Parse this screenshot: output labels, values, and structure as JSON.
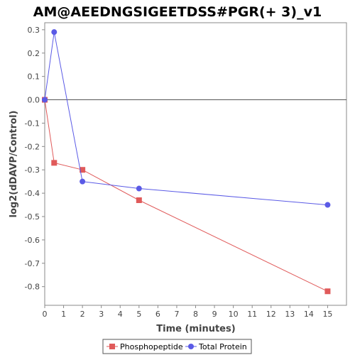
{
  "chart_data": {
    "type": "line",
    "title": "AM@AEEDNGSIGEETDSS#PGR(+ 3)_v1",
    "xlabel": "Time (minutes)",
    "ylabel": "log2(dDAVP/Control)",
    "xlim": [
      0,
      16
    ],
    "ylim": [
      -0.88,
      0.33
    ],
    "x_ticks": [
      "0",
      "1",
      "2",
      "3",
      "4",
      "5",
      "6",
      "7",
      "8",
      "9",
      "10",
      "11",
      "12",
      "13",
      "14",
      "15"
    ],
    "y_ticks": [
      "0.3",
      "0.2",
      "0.1",
      "0.0",
      "-0.1",
      "-0.2",
      "-0.3",
      "-0.4",
      "-0.5",
      "-0.6",
      "-0.7",
      "-0.8"
    ],
    "grid": false,
    "zero_line": true,
    "legend_position": "bottom",
    "series": [
      {
        "name": "Phosphopeptide",
        "color": "#e05a5a",
        "marker": "square",
        "x": [
          0,
          0.5,
          2,
          5,
          15
        ],
        "y": [
          0.0,
          -0.27,
          -0.3,
          -0.43,
          -0.82
        ]
      },
      {
        "name": "Total Protein",
        "color": "#5a5ae6",
        "marker": "circle",
        "x": [
          0,
          0.5,
          2,
          5,
          15
        ],
        "y": [
          0.0,
          0.29,
          -0.35,
          -0.38,
          -0.45
        ]
      }
    ]
  }
}
